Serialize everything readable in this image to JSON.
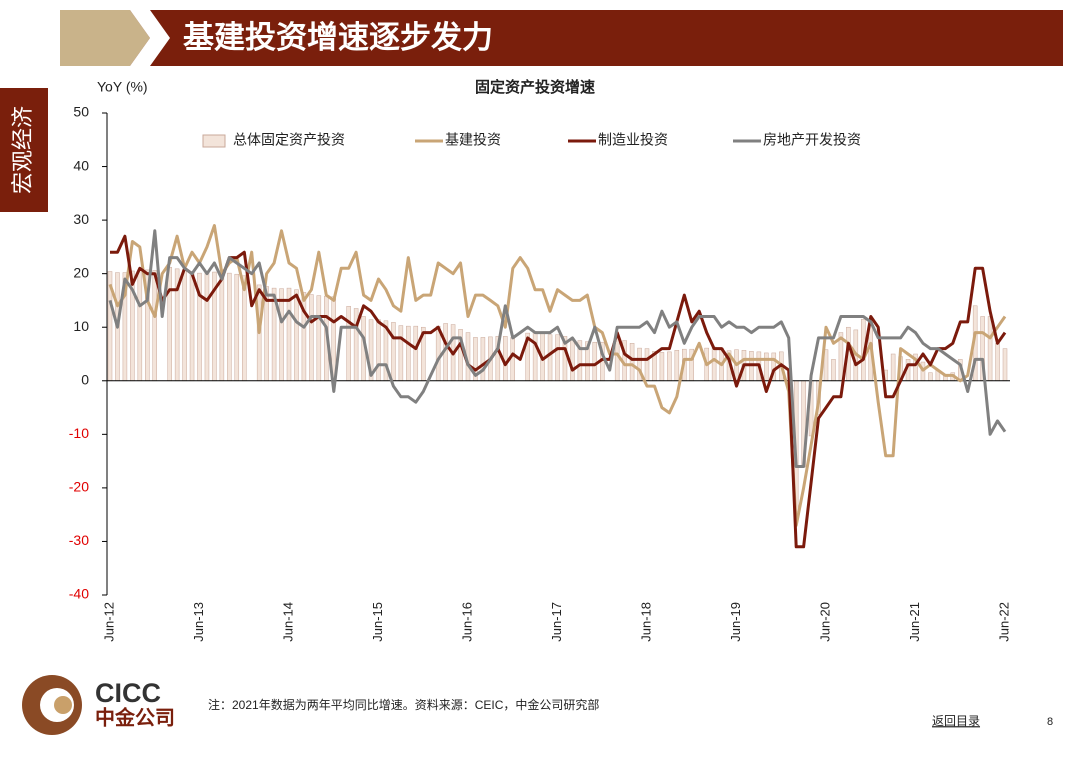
{
  "header": {
    "title": "基建投资增速逐步发力",
    "section": "宏观经济"
  },
  "chart_data": {
    "type": "bar_line",
    "title": "固定资产投资增速",
    "y_label": "YoY (%)",
    "categories": [
      "Jun-12",
      null,
      null,
      null,
      null,
      null,
      null,
      null,
      null,
      null,
      null,
      null,
      "Jun-13",
      null,
      null,
      null,
      null,
      null,
      null,
      null,
      null,
      null,
      null,
      null,
      "Jun-14",
      null,
      null,
      null,
      null,
      null,
      null,
      null,
      null,
      null,
      null,
      null,
      "Jun-15",
      null,
      null,
      null,
      null,
      null,
      null,
      null,
      null,
      null,
      null,
      null,
      "Jun-16",
      null,
      null,
      null,
      null,
      null,
      null,
      null,
      null,
      null,
      null,
      null,
      "Jun-17",
      null,
      null,
      null,
      null,
      null,
      null,
      null,
      null,
      null,
      null,
      null,
      "Jun-18",
      null,
      null,
      null,
      null,
      null,
      null,
      null,
      null,
      null,
      null,
      null,
      "Jun-19",
      null,
      null,
      null,
      null,
      null,
      null,
      null,
      null,
      null,
      null,
      null,
      "Jun-20",
      null,
      null,
      null,
      null,
      null,
      null,
      null,
      null,
      null,
      null,
      null,
      "Jun-21",
      null,
      null,
      null,
      null,
      null,
      null,
      null,
      null,
      null,
      null,
      null,
      "Jun-22"
    ],
    "series": [
      {
        "name": "总体固定资产投资",
        "type": "bar",
        "color": "#f3e4da",
        "values": [
          20.4,
          20.2,
          20.2,
          20.5,
          20.7,
          20.7,
          20.6,
          null,
          21.2,
          20.9,
          20.6,
          20.4,
          20.1,
          20.1,
          20.3,
          20.2,
          20.1,
          19.9,
          19.6,
          null,
          17.9,
          17.6,
          17.3,
          17.2,
          17.3,
          17.0,
          16.5,
          16.1,
          15.9,
          15.8,
          15.7,
          null,
          13.9,
          13.5,
          12.0,
          11.4,
          11.4,
          11.2,
          10.9,
          10.3,
          10.2,
          10.2,
          10.0,
          null,
          10.2,
          10.7,
          10.5,
          9.6,
          9.0,
          8.1,
          8.1,
          8.2,
          8.3,
          8.3,
          8.1,
          null,
          8.9,
          9.2,
          8.9,
          8.6,
          8.6,
          8.3,
          7.8,
          7.5,
          7.3,
          7.2,
          7.2,
          null,
          7.9,
          7.5,
          7.0,
          6.1,
          6.0,
          5.5,
          5.3,
          5.4,
          5.7,
          5.9,
          5.9,
          null,
          6.1,
          6.3,
          6.1,
          5.6,
          5.8,
          5.7,
          5.5,
          5.4,
          5.2,
          5.2,
          5.4,
          null,
          -24.5,
          -16.1,
          -10.3,
          -6.3,
          5.8,
          4.0,
          9.0,
          10.0,
          9.5,
          11.5,
          11.0,
          null,
          2.0,
          5.0,
          4.5,
          4.0,
          5.0,
          3.5,
          1.5,
          2.0,
          1.0,
          1.5,
          4.0,
          null,
          14.0,
          12.0,
          12.0,
          7.0,
          6.0
        ]
      },
      {
        "name": "基建投资",
        "type": "line",
        "color": "#c9a576",
        "values": [
          18,
          14,
          16,
          26,
          25,
          15,
          12,
          20,
          22,
          27,
          21,
          24,
          22,
          25,
          29,
          20,
          22,
          23,
          17,
          24,
          9,
          20,
          22,
          28,
          22,
          21,
          15,
          17,
          24,
          16,
          15,
          21,
          21,
          24,
          16,
          15,
          19,
          17,
          14,
          13,
          23,
          15,
          16,
          16,
          22,
          21,
          20,
          22,
          12,
          16,
          16,
          15,
          14,
          10,
          21,
          23,
          21,
          17,
          17,
          13,
          17,
          16,
          15,
          15,
          16,
          10,
          9,
          5,
          5,
          3,
          3,
          2,
          -1,
          -1,
          -5,
          -6,
          -3,
          4,
          4,
          7,
          3,
          4,
          3,
          5,
          3,
          4,
          4,
          4,
          4,
          4,
          3,
          -2,
          -27,
          -20,
          -12,
          -4,
          10,
          7,
          8,
          7,
          5,
          4,
          7,
          -4,
          -14,
          -14,
          6,
          5,
          4,
          2,
          3,
          2,
          1,
          1,
          0,
          1,
          9,
          9,
          8,
          10,
          12
        ]
      },
      {
        "name": "制造业投资",
        "type": "line",
        "color": "#7b1a0c",
        "values": [
          24,
          24,
          27,
          18,
          21,
          20,
          20,
          15,
          17,
          17,
          21,
          20,
          16,
          15,
          17,
          19,
          23,
          23,
          24,
          14,
          17,
          15,
          15,
          15,
          15,
          16,
          13,
          11,
          12,
          12,
          11,
          12,
          11,
          10,
          14,
          13,
          11,
          10,
          8,
          8,
          7,
          6,
          9,
          9,
          10,
          7,
          5,
          7,
          3,
          2,
          3,
          4,
          6,
          3,
          5,
          4,
          8,
          7,
          4,
          5,
          6,
          6,
          2,
          3,
          3,
          3,
          4,
          4,
          9,
          5,
          4,
          4,
          4,
          5,
          6,
          6,
          11,
          16,
          11,
          13,
          9,
          6,
          6,
          4,
          -1,
          3,
          3,
          3,
          -2,
          2,
          3,
          2,
          -31,
          -31,
          -19,
          -7,
          -5,
          -3,
          -3,
          7,
          3,
          4,
          12,
          10,
          -3,
          -3,
          0,
          3,
          3,
          5,
          3,
          6,
          6,
          7,
          11,
          11,
          21,
          21,
          13,
          7,
          9
        ]
      },
      {
        "name": "房地产开发投资",
        "type": "line",
        "color": "#808080",
        "values": [
          15,
          10,
          19,
          17,
          14,
          15,
          28,
          12,
          23,
          23,
          21,
          20,
          22,
          20,
          22,
          19,
          23,
          22,
          21,
          20,
          22,
          16,
          16,
          11,
          13,
          11,
          10,
          12,
          12,
          10,
          -2,
          10,
          10,
          10,
          8,
          1,
          3,
          3,
          -1,
          -3,
          -3,
          -4,
          -2,
          1,
          4,
          6,
          8,
          8,
          3,
          1,
          2,
          4,
          6,
          14,
          8,
          9,
          10,
          9,
          9,
          9,
          10,
          7,
          8,
          6,
          6,
          10,
          5,
          2,
          10,
          10,
          10,
          10,
          11,
          9,
          13,
          10,
          11,
          7,
          10,
          12,
          12,
          12,
          10,
          11,
          10,
          10,
          9,
          10,
          10,
          10,
          11,
          8,
          -16,
          -16,
          1,
          8,
          8,
          8,
          12,
          12,
          12,
          12,
          11,
          8,
          8,
          8,
          8,
          10,
          9,
          7,
          6,
          6,
          5,
          4,
          3,
          -2,
          4,
          4,
          -10,
          -7.5,
          -9.5
        ]
      }
    ],
    "ylim": [
      -40,
      50
    ],
    "yticks": [
      -40,
      -30,
      -20,
      -10,
      0,
      10,
      20,
      30,
      40,
      50
    ]
  },
  "footer": {
    "note": "注：2021年数据为两年平均同比增速。资料来源：CEIC，中金公司研究部",
    "logo_en": "CICC",
    "logo_cn": "中金公司",
    "link": "返回目录",
    "page": "8"
  }
}
